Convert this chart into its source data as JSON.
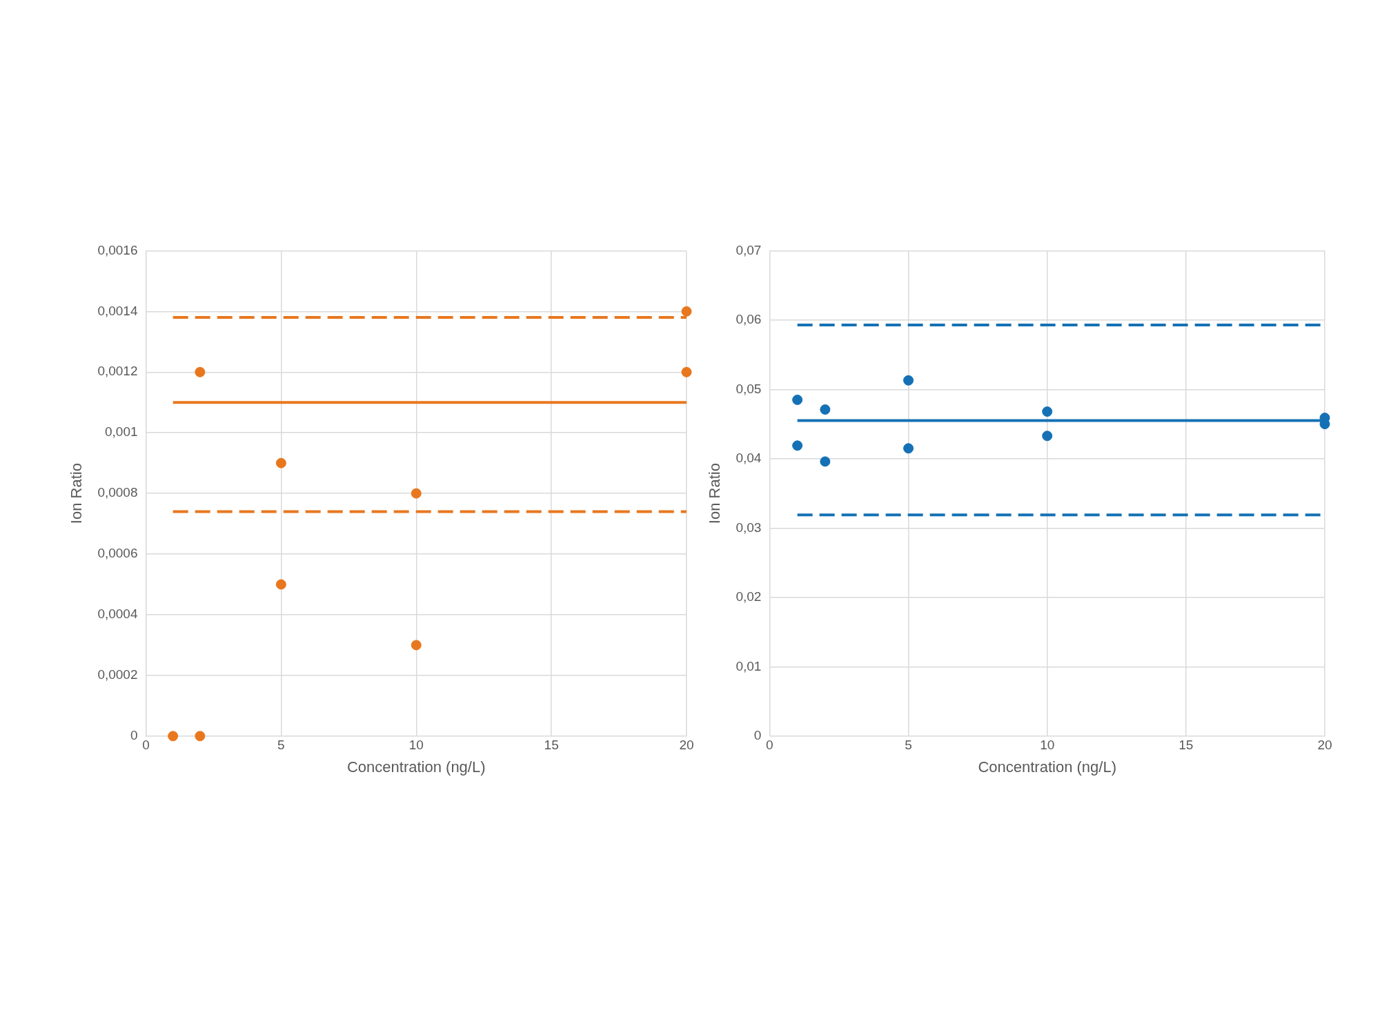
{
  "chart_data": [
    {
      "type": "scatter",
      "xlabel": "Concentration (ng/L)",
      "ylabel": "Ion Ratio",
      "grid": true,
      "xlim": [
        0,
        20
      ],
      "xticks": [
        0,
        5,
        10,
        15,
        20
      ],
      "ylim": [
        0,
        0.0016
      ],
      "yticks": [
        0,
        {
          "value": 0.0002,
          "label": "0,0002"
        },
        {
          "value": 0.0004,
          "label": "0,0004"
        },
        {
          "value": 0.0006,
          "label": "0,0006"
        },
        {
          "value": 0.0008,
          "label": "0,0008"
        },
        {
          "value": 0.001,
          "label": "0,001"
        },
        {
          "value": 0.0012,
          "label": "0,0012"
        },
        {
          "value": 0.0014,
          "label": "0,0014"
        },
        {
          "value": 0.0016,
          "label": "0,0016"
        }
      ],
      "series": [
        {
          "marker": "circle",
          "color": "#e8771e",
          "x": [
            1,
            2,
            2,
            5,
            5,
            10,
            10,
            20,
            20
          ],
          "values": [
            0,
            0,
            0.0012,
            0.0009,
            0.0005,
            0.0008,
            0.0003,
            0.0014,
            0.0012
          ]
        },
        {
          "type": "line",
          "marker": "none",
          "color": "#e8771e",
          "line_style": "dashed",
          "x": [
            1,
            20
          ],
          "values": [
            0.00138,
            0.00138
          ]
        },
        {
          "type": "line",
          "marker": "none",
          "color": "#e8771e",
          "line_style": "solid",
          "x": [
            1,
            20
          ],
          "values": [
            0.0011,
            0.0011
          ]
        },
        {
          "type": "line",
          "marker": "none",
          "color": "#e8771e",
          "line_style": "dashed",
          "x": [
            1,
            20
          ],
          "values": [
            0.00074,
            0.00074
          ]
        }
      ]
    },
    {
      "type": "scatter",
      "xlabel": "Concentration (ng/L)",
      "ylabel": "Ion Ratio",
      "grid": true,
      "xlim": [
        0,
        20
      ],
      "xticks": [
        0,
        5,
        10,
        15,
        20
      ],
      "ylim": [
        0,
        0.07
      ],
      "yticks": [
        0,
        {
          "value": 0.01,
          "label": "0,01"
        },
        {
          "value": 0.02,
          "label": "0,02"
        },
        {
          "value": 0.03,
          "label": "0,03"
        },
        {
          "value": 0.04,
          "label": "0,04"
        },
        {
          "value": 0.05,
          "label": "0,05"
        },
        {
          "value": 0.06,
          "label": "0,06"
        },
        {
          "value": 0.07,
          "label": "0,07"
        }
      ],
      "series": [
        {
          "marker": "circle",
          "color": "#1571b5",
          "x": [
            1,
            1,
            2,
            2,
            5,
            5,
            10,
            10,
            20,
            20
          ],
          "values": [
            0.0485,
            0.0419,
            0.0471,
            0.0396,
            0.0513,
            0.0415,
            0.0468,
            0.0433,
            0.0459,
            0.045
          ]
        },
        {
          "type": "line",
          "marker": "none",
          "color": "#1571b5",
          "line_style": "dashed",
          "x": [
            1,
            20
          ],
          "values": [
            0.0593,
            0.0593
          ]
        },
        {
          "type": "line",
          "marker": "none",
          "color": "#1571b5",
          "line_style": "solid",
          "x": [
            1,
            20
          ],
          "values": [
            0.0455,
            0.0455
          ]
        },
        {
          "type": "line",
          "marker": "none",
          "color": "#1571b5",
          "line_style": "dashed",
          "x": [
            1,
            20
          ],
          "values": [
            0.0319,
            0.0319
          ]
        }
      ]
    }
  ]
}
